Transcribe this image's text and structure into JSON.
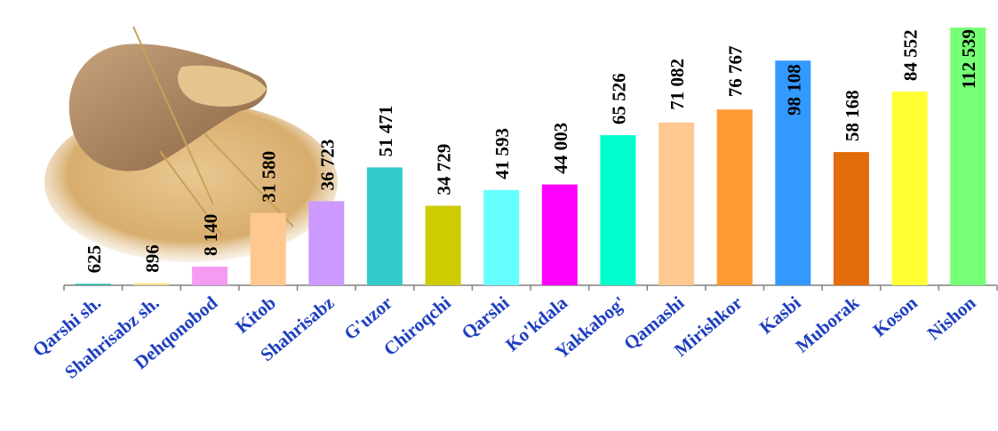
{
  "chart_data": {
    "type": "bar",
    "categories": [
      "Qarshi sh.",
      "Shahrisabz sh.",
      "Dehqonobod",
      "Kitob",
      "Shahrisabz",
      "G'uzor",
      "Chiroqchi",
      "Qarshi",
      "Ko'kdala",
      "Yakkabog'",
      "Qamashi",
      "Mirishkor",
      "Kasbi",
      "Muborak",
      "Koson",
      "Nishon"
    ],
    "values": [
      625,
      896,
      8140,
      31580,
      36723,
      51471,
      34729,
      41593,
      44003,
      65526,
      71082,
      76767,
      98108,
      58168,
      84552,
      112539
    ],
    "value_labels": [
      "625",
      "896",
      "8 140",
      "31 580",
      "36 723",
      "51 471",
      "34 729",
      "41 593",
      "44 003",
      "65 526",
      "71 082",
      "76 767",
      "98 108",
      "58 168",
      "84 552",
      "112 539"
    ],
    "colors": [
      "#20b2aa",
      "#ffe08a",
      "#f59cf2",
      "#ffc891",
      "#cc99ff",
      "#33cccc",
      "#cccc00",
      "#66ffff",
      "#ff00ff",
      "#00ffcc",
      "#ffc891",
      "#ff9933",
      "#3399ff",
      "#e36c0a",
      "#ffff33",
      "#77ff77"
    ],
    "title": "",
    "xlabel": "",
    "ylabel": "",
    "ylim": [
      0,
      112539
    ],
    "grid": false,
    "legend": "none",
    "decoration": "wheat-sack-image"
  }
}
